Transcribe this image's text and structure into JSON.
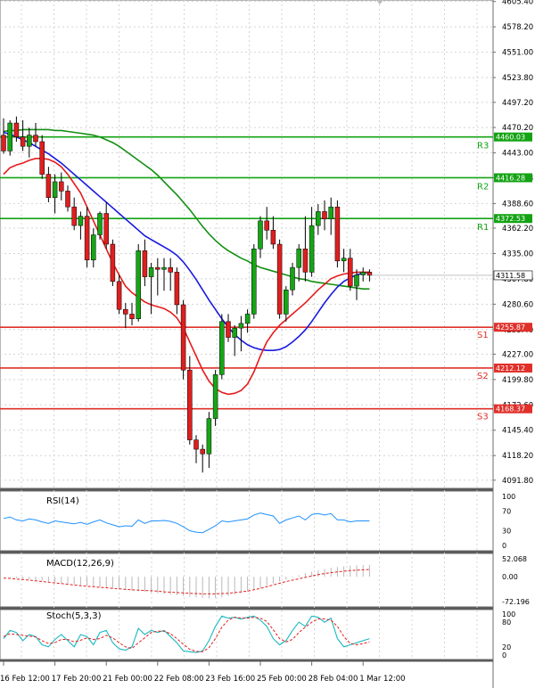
{
  "chart_data": {
    "type": "candlestick",
    "price_axis": {
      "ylim": [
        4083,
        4607
      ],
      "ticks": [
        "4605.40",
        "4578.20",
        "4551.00",
        "4523.80",
        "4497.20",
        "4470.20",
        "4443.00",
        "4416.28",
        "4388.60",
        "4362.20",
        "4335.00",
        "4307.80",
        "4280.60",
        "4253.40",
        "4227.00",
        "4199.80",
        "4172.60",
        "4145.40",
        "4118.20",
        "4091.80"
      ],
      "tick_values": [
        4605.4,
        4578.2,
        4551.0,
        4523.8,
        4497.2,
        4470.2,
        4443.0,
        4416.28,
        4388.6,
        4362.2,
        4335.0,
        4307.8,
        4280.6,
        4253.4,
        4227.0,
        4199.8,
        4172.6,
        4145.4,
        4118.2,
        4091.8
      ],
      "current_price": "4311.58",
      "current_value": 4311.58
    },
    "levels": [
      {
        "name": "R3",
        "label": "4460.03",
        "value": 4460.03,
        "color": "#13a313"
      },
      {
        "name": "R2",
        "label": "4416.28",
        "value": 4416.28,
        "color": "#13a313"
      },
      {
        "name": "R1",
        "label": "4372.53",
        "value": 4372.53,
        "color": "#13a313"
      },
      {
        "name": "S1",
        "label": "4255.87",
        "value": 4255.87,
        "color": "#e0302a"
      },
      {
        "name": "S2",
        "label": "4212.12",
        "value": 4212.12,
        "color": "#e0302a"
      },
      {
        "name": "S3",
        "label": "4168.37",
        "value": 4168.37,
        "color": "#e0302a"
      }
    ],
    "x_labels": [
      "16 Feb 12:00",
      "17 Feb 20:00",
      "21 Feb 00:00",
      "22 Feb 08:00",
      "23 Feb 16:00",
      "25 Feb 00:00",
      "28 Feb 04:00",
      "1 Mar 12:00"
    ],
    "x_label_index": [
      0,
      8,
      16,
      24,
      32,
      40,
      48,
      56
    ],
    "candles": [
      [
        4462,
        4480,
        4442,
        4445
      ],
      [
        4445,
        4478,
        4440,
        4475
      ],
      [
        4475,
        4482,
        4455,
        4460
      ],
      [
        4460,
        4478,
        4445,
        4450
      ],
      [
        4450,
        4470,
        4438,
        4462
      ],
      [
        4462,
        4475,
        4450,
        4455
      ],
      [
        4455,
        4462,
        4415,
        4420
      ],
      [
        4420,
        4428,
        4390,
        4395
      ],
      [
        4395,
        4420,
        4378,
        4412
      ],
      [
        4412,
        4422,
        4392,
        4402
      ],
      [
        4402,
        4408,
        4380,
        4385
      ],
      [
        4385,
        4395,
        4360,
        4365
      ],
      [
        4365,
        4380,
        4350,
        4375
      ],
      [
        4375,
        4385,
        4320,
        4328
      ],
      [
        4328,
        4362,
        4320,
        4355
      ],
      [
        4355,
        4380,
        4350,
        4378
      ],
      [
        4378,
        4390,
        4340,
        4345
      ],
      [
        4345,
        4350,
        4300,
        4305
      ],
      [
        4305,
        4312,
        4270,
        4275
      ],
      [
        4275,
        4282,
        4255,
        4270
      ],
      [
        4270,
        4282,
        4258,
        4265
      ],
      [
        4265,
        4345,
        4262,
        4338
      ],
      [
        4338,
        4350,
        4300,
        4310
      ],
      [
        4310,
        4325,
        4270,
        4320
      ],
      [
        4320,
        4330,
        4290,
        4318
      ],
      [
        4318,
        4330,
        4295,
        4320
      ],
      [
        4320,
        4330,
        4295,
        4315
      ],
      [
        4315,
        4320,
        4270,
        4280
      ],
      [
        4280,
        4285,
        4200,
        4210
      ],
      [
        4210,
        4225,
        4130,
        4135
      ],
      [
        4135,
        4140,
        4110,
        4125
      ],
      [
        4125,
        4130,
        4100,
        4120
      ],
      [
        4120,
        4165,
        4105,
        4158
      ],
      [
        4158,
        4210,
        4150,
        4205
      ],
      [
        4205,
        4270,
        4200,
        4262
      ],
      [
        4262,
        4270,
        4240,
        4245
      ],
      [
        4245,
        4258,
        4225,
        4255
      ],
      [
        4255,
        4268,
        4230,
        4260
      ],
      [
        4260,
        4275,
        4250,
        4270
      ],
      [
        4270,
        4345,
        4265,
        4340
      ],
      [
        4340,
        4375,
        4330,
        4370
      ],
      [
        4370,
        4385,
        4350,
        4360
      ],
      [
        4360,
        4375,
        4340,
        4345
      ],
      [
        4345,
        4350,
        4265,
        4270
      ],
      [
        4270,
        4300,
        4262,
        4296
      ],
      [
        4296,
        4325,
        4290,
        4320
      ],
      [
        4320,
        4345,
        4305,
        4340
      ],
      [
        4340,
        4375,
        4305,
        4315
      ],
      [
        4315,
        4385,
        4310,
        4365
      ],
      [
        4365,
        4388,
        4355,
        4380
      ],
      [
        4380,
        4392,
        4360,
        4372
      ],
      [
        4372,
        4395,
        4355,
        4385
      ],
      [
        4385,
        4392,
        4320,
        4327
      ],
      [
        4327,
        4340,
        4315,
        4330
      ],
      [
        4330,
        4340,
        4295,
        4300
      ],
      [
        4300,
        4318,
        4285,
        4312
      ],
      [
        4312,
        4320,
        4305,
        4315
      ],
      [
        4315,
        4318,
        4305,
        4311.58
      ]
    ],
    "ma_red": [
      4420,
      4427,
      4430,
      4432,
      4435,
      4437,
      4437,
      4436,
      4433,
      4428,
      4420,
      4410,
      4400,
      4385,
      4370,
      4355,
      4340,
      4325,
      4312,
      4300,
      4293,
      4288,
      4283,
      4280,
      4278,
      4276,
      4272,
      4266,
      4255,
      4240,
      4225,
      4210,
      4198,
      4190,
      4186,
      4184,
      4185,
      4188,
      4195,
      4208,
      4225,
      4240,
      4250,
      4258,
      4264,
      4270,
      4276,
      4282,
      4289,
      4296,
      4302,
      4308,
      4311,
      4313,
      4314,
      4315,
      4315,
      4315
    ],
    "ma_blue": [
      4465,
      4463,
      4460,
      4457,
      4454,
      4450,
      4446,
      4442,
      4437,
      4432,
      4426,
      4420,
      4414,
      4408,
      4402,
      4396,
      4390,
      4384,
      4378,
      4372,
      4366,
      4360,
      4354,
      4350,
      4346,
      4342,
      4338,
      4333,
      4326,
      4317,
      4307,
      4296,
      4285,
      4275,
      4265,
      4256,
      4248,
      4242,
      4237,
      4234,
      4232,
      4231,
      4231,
      4232,
      4235,
      4240,
      4246,
      4253,
      4262,
      4272,
      4282,
      4291,
      4299,
      4305,
      4309,
      4312,
      4314,
      4315
    ],
    "ma_green": [
      4466,
      4467,
      4467,
      4468,
      4468,
      4468,
      4468,
      4468,
      4467,
      4467,
      4466,
      4465,
      4464,
      4463,
      4462,
      4460,
      4457,
      4454,
      4450,
      4445,
      4440,
      4435,
      4430,
      4425,
      4419,
      4412,
      4405,
      4398,
      4390,
      4382,
      4373,
      4364,
      4356,
      4349,
      4343,
      4338,
      4334,
      4330,
      4327,
      4323,
      4320,
      4318,
      4316,
      4314,
      4312,
      4310,
      4308,
      4307,
      4305,
      4304,
      4303,
      4302,
      4301,
      4300,
      4299,
      4298,
      4297,
      4297
    ],
    "rsi": {
      "label": "RSI(14)",
      "ticks": [
        "100",
        "70",
        "30",
        "0"
      ],
      "tick_values": [
        100,
        70,
        30,
        0
      ],
      "values": [
        55,
        58,
        52,
        50,
        54,
        52,
        48,
        45,
        50,
        48,
        46,
        44,
        47,
        43,
        48,
        52,
        46,
        42,
        38,
        40,
        39,
        52,
        45,
        50,
        50,
        51,
        49,
        45,
        38,
        30,
        27,
        26,
        33,
        40,
        50,
        48,
        50,
        52,
        54,
        62,
        66,
        63,
        60,
        45,
        52,
        56,
        60,
        52,
        63,
        65,
        62,
        65,
        52,
        52,
        48,
        50,
        50,
        50
      ]
    },
    "macd": {
      "label": "MACD(12,26,9)",
      "ticks": [
        "52.068",
        "0.00",
        "-72.196"
      ],
      "tick_values": [
        52.068,
        0,
        -72.196
      ],
      "hist": [
        0,
        -2,
        -4,
        -6,
        -8,
        -10,
        -12,
        -14,
        -16,
        -18,
        -20,
        -22,
        -24,
        -26,
        -28,
        -30,
        -32,
        -34,
        -36,
        -38,
        -40,
        -42,
        -44,
        -46,
        -48,
        -50,
        -52,
        -54,
        -56,
        -58,
        -60,
        -62,
        -63,
        -62,
        -60,
        -56,
        -52,
        -48,
        -44,
        -38,
        -32,
        -26,
        -20,
        -14,
        -8,
        -2,
        4,
        10,
        14,
        18,
        22,
        26,
        28,
        30,
        32,
        33,
        34,
        34
      ],
      "signal": [
        -4,
        -5,
        -7,
        -8,
        -10,
        -12,
        -14,
        -16,
        -18,
        -20,
        -22,
        -24,
        -26,
        -28,
        -29,
        -31,
        -32,
        -34,
        -35,
        -37,
        -38,
        -39,
        -40,
        -41,
        -42,
        -44,
        -45,
        -46,
        -47,
        -48,
        -49,
        -50,
        -50,
        -50,
        -49,
        -48,
        -46,
        -44,
        -42,
        -38,
        -34,
        -29,
        -24,
        -19,
        -14,
        -10,
        -6,
        -2,
        2,
        6,
        9,
        12,
        14,
        16,
        18,
        19,
        20,
        21
      ]
    },
    "stoch": {
      "label": "Stoch(5,3,3)",
      "ticks": [
        "100",
        "80",
        "20",
        "0"
      ],
      "tick_values": [
        100,
        80,
        20,
        0
      ],
      "k": [
        40,
        60,
        55,
        35,
        50,
        45,
        25,
        20,
        38,
        50,
        35,
        20,
        50,
        45,
        25,
        55,
        60,
        30,
        15,
        12,
        20,
        65,
        50,
        60,
        55,
        60,
        45,
        30,
        10,
        8,
        6,
        10,
        35,
        70,
        95,
        90,
        92,
        88,
        92,
        95,
        85,
        70,
        40,
        25,
        35,
        60,
        80,
        70,
        95,
        92,
        80,
        90,
        40,
        20,
        25,
        30,
        35,
        40
      ],
      "d": [
        45,
        52,
        50,
        48,
        46,
        44,
        35,
        28,
        30,
        38,
        38,
        32,
        36,
        42,
        38,
        40,
        48,
        42,
        30,
        20,
        16,
        30,
        42,
        55,
        58,
        58,
        52,
        40,
        26,
        14,
        9,
        8,
        18,
        40,
        68,
        85,
        92,
        90,
        90,
        92,
        90,
        82,
        62,
        40,
        32,
        38,
        55,
        68,
        80,
        88,
        88,
        85,
        70,
        45,
        28,
        25,
        28,
        32
      ]
    }
  }
}
